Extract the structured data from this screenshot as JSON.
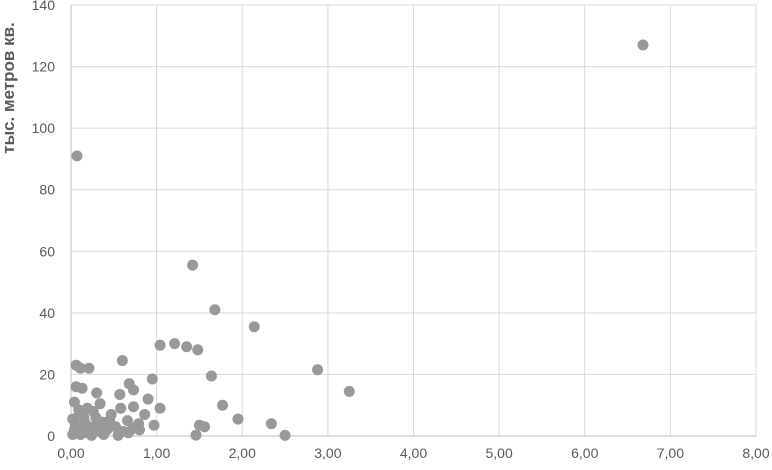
{
  "chart_data": {
    "type": "scatter",
    "ylabel": "тыс. метров кв.",
    "xlim": [
      0,
      8
    ],
    "ylim": [
      0,
      140
    ],
    "xticks": [
      "0,00",
      "1,00",
      "2,00",
      "3,00",
      "4,00",
      "5,00",
      "6,00",
      "7,00",
      "8,00"
    ],
    "yticks": [
      "0",
      "20",
      "40",
      "60",
      "80",
      "100",
      "120",
      "140"
    ],
    "grid": true,
    "marker_color": "#999999",
    "points": [
      {
        "x": 6.68,
        "y": 127
      },
      {
        "x": 0.07,
        "y": 91
      },
      {
        "x": 1.42,
        "y": 55.5
      },
      {
        "x": 1.68,
        "y": 41
      },
      {
        "x": 2.14,
        "y": 35.5
      },
      {
        "x": 1.04,
        "y": 29.5
      },
      {
        "x": 1.21,
        "y": 30
      },
      {
        "x": 1.35,
        "y": 29
      },
      {
        "x": 1.48,
        "y": 28
      },
      {
        "x": 0.6,
        "y": 24.5
      },
      {
        "x": 0.06,
        "y": 23
      },
      {
        "x": 0.21,
        "y": 22
      },
      {
        "x": 0.11,
        "y": 22
      },
      {
        "x": 2.88,
        "y": 21.5
      },
      {
        "x": 1.64,
        "y": 19.5
      },
      {
        "x": 0.95,
        "y": 18.5
      },
      {
        "x": 0.68,
        "y": 17
      },
      {
        "x": 0.06,
        "y": 16
      },
      {
        "x": 0.13,
        "y": 15.5
      },
      {
        "x": 0.73,
        "y": 15
      },
      {
        "x": 3.25,
        "y": 14.5
      },
      {
        "x": 0.3,
        "y": 14
      },
      {
        "x": 0.57,
        "y": 13.5
      },
      {
        "x": 0.9,
        "y": 12
      },
      {
        "x": 0.04,
        "y": 11
      },
      {
        "x": 0.34,
        "y": 10.5
      },
      {
        "x": 1.77,
        "y": 10
      },
      {
        "x": 0.73,
        "y": 9.5
      },
      {
        "x": 1.04,
        "y": 9
      },
      {
        "x": 0.58,
        "y": 9
      },
      {
        "x": 0.19,
        "y": 9
      },
      {
        "x": 0.26,
        "y": 8
      },
      {
        "x": 0.47,
        "y": 7
      },
      {
        "x": 0.86,
        "y": 7
      },
      {
        "x": 0.09,
        "y": 6.5
      },
      {
        "x": 0.15,
        "y": 6
      },
      {
        "x": 0.02,
        "y": 5.5
      },
      {
        "x": 1.95,
        "y": 5.5
      },
      {
        "x": 0.66,
        "y": 5
      },
      {
        "x": 0.37,
        "y": 4.5
      },
      {
        "x": 0.79,
        "y": 4
      },
      {
        "x": 2.34,
        "y": 4
      },
      {
        "x": 1.5,
        "y": 3.5
      },
      {
        "x": 0.97,
        "y": 3.5
      },
      {
        "x": 0.05,
        "y": 3.5
      },
      {
        "x": 0.27,
        "y": 3
      },
      {
        "x": 0.52,
        "y": 3
      },
      {
        "x": 1.56,
        "y": 3
      },
      {
        "x": 0.15,
        "y": 2.5
      },
      {
        "x": 0.72,
        "y": 2.5
      },
      {
        "x": 0.42,
        "y": 2
      },
      {
        "x": 0.07,
        "y": 1.5
      },
      {
        "x": 0.33,
        "y": 1.5
      },
      {
        "x": 0.61,
        "y": 1.5
      },
      {
        "x": 0.2,
        "y": 1
      },
      {
        "x": 0.67,
        "y": 1
      },
      {
        "x": 0.02,
        "y": 0.5
      },
      {
        "x": 0.11,
        "y": 0.5
      },
      {
        "x": 0.38,
        "y": 0.5
      },
      {
        "x": 0.55,
        "y": 0.2
      },
      {
        "x": 1.46,
        "y": 0.3
      },
      {
        "x": 2.5,
        "y": 0.2
      },
      {
        "x": 0.24,
        "y": 0.2
      },
      {
        "x": 0.04,
        "y": 2
      },
      {
        "x": 0.17,
        "y": 4
      },
      {
        "x": 0.45,
        "y": 5
      },
      {
        "x": 0.09,
        "y": 8.5
      },
      {
        "x": 0.29,
        "y": 6
      },
      {
        "x": 0.8,
        "y": 2
      }
    ]
  }
}
